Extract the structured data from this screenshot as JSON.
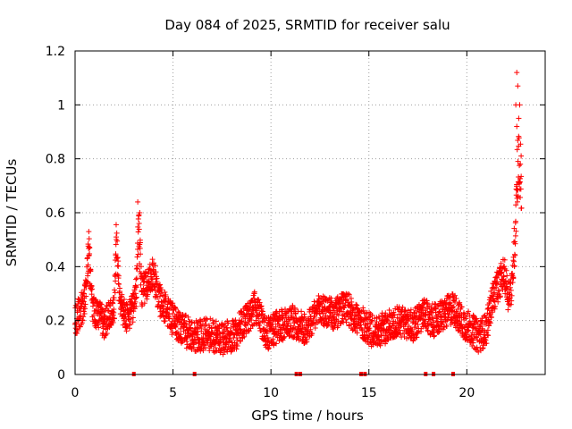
{
  "chart_data": {
    "type": "scatter",
    "title": "Day 084 of 2025, SRMTID for receiver salu",
    "xlabel": "GPS time / hours",
    "ylabel": "SRMTID / TECUs",
    "xlim": [
      0,
      24
    ],
    "ylim": [
      0,
      1.2
    ],
    "grid": true,
    "marker": "+",
    "color": "#ff0000",
    "x_ticks": [
      0,
      5,
      10,
      15,
      20
    ],
    "x_tick_labels": [
      "0",
      "5",
      "10",
      "15",
      "20"
    ],
    "y_ticks": [
      0,
      0.2,
      0.4,
      0.6,
      0.8,
      1.0,
      1.2
    ],
    "y_tick_labels": [
      "0",
      "0.2",
      "0.4",
      "0.6",
      "0.8",
      "1",
      "1.2"
    ],
    "trend": [
      [
        0.0,
        0.2
      ],
      [
        0.3,
        0.24
      ],
      [
        0.5,
        0.28
      ],
      [
        0.7,
        0.45
      ],
      [
        0.9,
        0.25
      ],
      [
        1.5,
        0.19
      ],
      [
        2.0,
        0.25
      ],
      [
        2.1,
        0.48
      ],
      [
        2.3,
        0.26
      ],
      [
        2.7,
        0.2
      ],
      [
        3.1,
        0.28
      ],
      [
        3.25,
        0.55
      ],
      [
        3.4,
        0.3
      ],
      [
        3.8,
        0.36
      ],
      [
        4.0,
        0.38
      ],
      [
        4.3,
        0.28
      ],
      [
        4.8,
        0.22
      ],
      [
        5.3,
        0.18
      ],
      [
        6.0,
        0.14
      ],
      [
        6.8,
        0.15
      ],
      [
        7.5,
        0.13
      ],
      [
        8.2,
        0.15
      ],
      [
        8.7,
        0.2
      ],
      [
        9.2,
        0.25
      ],
      [
        9.8,
        0.15
      ],
      [
        10.4,
        0.18
      ],
      [
        11.0,
        0.2
      ],
      [
        11.8,
        0.17
      ],
      [
        12.5,
        0.24
      ],
      [
        13.2,
        0.22
      ],
      [
        13.8,
        0.25
      ],
      [
        14.5,
        0.2
      ],
      [
        15.2,
        0.16
      ],
      [
        15.8,
        0.17
      ],
      [
        16.5,
        0.2
      ],
      [
        17.2,
        0.18
      ],
      [
        17.8,
        0.22
      ],
      [
        18.3,
        0.2
      ],
      [
        18.8,
        0.22
      ],
      [
        19.3,
        0.25
      ],
      [
        19.7,
        0.2
      ],
      [
        20.2,
        0.17
      ],
      [
        20.6,
        0.14
      ],
      [
        21.0,
        0.17
      ],
      [
        21.3,
        0.28
      ],
      [
        21.6,
        0.33
      ],
      [
        21.9,
        0.38
      ],
      [
        22.1,
        0.3
      ],
      [
        22.3,
        0.32
      ],
      [
        22.45,
        0.5
      ],
      [
        22.6,
        0.8
      ],
      [
        22.7,
        0.75
      ],
      [
        22.8,
        0.72
      ]
    ],
    "spikes": [
      {
        "x": 22.55,
        "y": 1.12
      },
      {
        "x": 22.6,
        "y": 1.07
      },
      {
        "x": 22.5,
        "y": 1.0
      },
      {
        "x": 22.7,
        "y": 1.0
      },
      {
        "x": 22.65,
        "y": 0.95
      },
      {
        "x": 22.55,
        "y": 0.92
      },
      {
        "x": 3.2,
        "y": 0.64
      },
      {
        "x": 3.3,
        "y": 0.6
      },
      {
        "x": 0.7,
        "y": 0.53
      },
      {
        "x": 2.1,
        "y": 0.51
      }
    ],
    "scatter_amplitude": 0.06,
    "points_per_hour": 115,
    "bottom_markers": [
      3.0,
      6.1,
      11.3,
      11.5,
      14.6,
      14.8,
      17.9,
      18.3,
      19.3
    ]
  }
}
